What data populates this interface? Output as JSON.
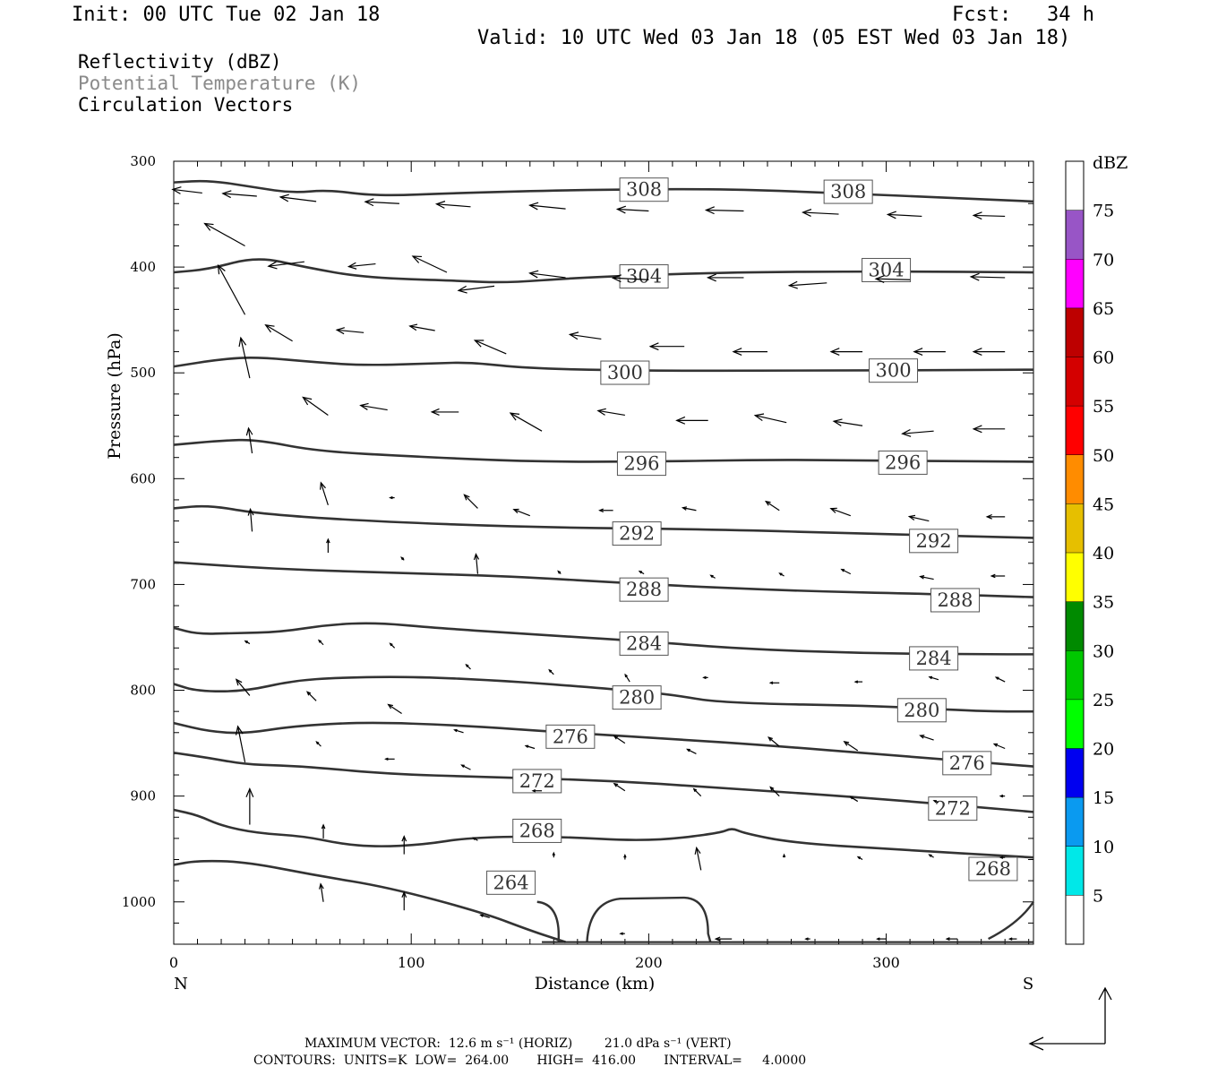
{
  "header": {
    "init": "Init: 00 UTC Tue 02 Jan 18",
    "fcst": "Fcst:   34 h",
    "valid": "Valid: 10 UTC Wed 03 Jan 18 (05 EST Wed 03 Jan 18)"
  },
  "legend": {
    "line1": "Reflectivity (dBZ)",
    "line2": "Potential Temperature (K)",
    "line3": "Circulation Vectors"
  },
  "footer": {
    "max_vector": "MAXIMUM VECTOR:  12.6 m s⁻¹ (HORIZ)        21.0 dPa s⁻¹ (VERT)",
    "contours": "CONTOURS:  UNITS=K  LOW=  264.00       HIGH=  416.00       INTERVAL=     4.0000"
  },
  "chart_data": {
    "type": "cross-section",
    "xlabel": "Distance (km)",
    "ylabel": "Pressure (hPa)",
    "xlim": [
      0,
      362
    ],
    "ylim": [
      1040,
      300
    ],
    "x_ticks": [
      0,
      100,
      200,
      300
    ],
    "y_ticks": [
      300,
      400,
      500,
      600,
      700,
      800,
      900,
      1000
    ],
    "x_end_labels": {
      "left": "N",
      "right": "S"
    },
    "colorbar": {
      "title": "dBZ",
      "levels": [
        5,
        10,
        15,
        20,
        25,
        30,
        35,
        40,
        45,
        50,
        55,
        60,
        65,
        70,
        75
      ],
      "colors": [
        "#ffffff",
        "#00e8e8",
        "#0a9af0",
        "#0000f0",
        "#00ff00",
        "#00c800",
        "#008a00",
        "#ffff00",
        "#e6bf00",
        "#ff8c00",
        "#ff0000",
        "#d40000",
        "#bd0000",
        "#ff00ff",
        "#9855c6",
        "#ffffff"
      ]
    },
    "theta_contours": [
      {
        "value": 308,
        "labels_at": [
          [
            198,
            326
          ],
          [
            284,
            328
          ]
        ],
        "points": [
          [
            0,
            320
          ],
          [
            15,
            318
          ],
          [
            35,
            325
          ],
          [
            50,
            330
          ],
          [
            65,
            327
          ],
          [
            85,
            333
          ],
          [
            120,
            330
          ],
          [
            170,
            327
          ],
          [
            230,
            326
          ],
          [
            280,
            330
          ],
          [
            330,
            335
          ],
          [
            362,
            338
          ]
        ]
      },
      {
        "value": 304,
        "labels_at": [
          [
            198,
            408
          ],
          [
            300,
            402
          ]
        ],
        "points": [
          [
            0,
            405
          ],
          [
            15,
            402
          ],
          [
            35,
            390
          ],
          [
            55,
            400
          ],
          [
            80,
            410
          ],
          [
            120,
            413
          ],
          [
            140,
            415
          ],
          [
            170,
            410
          ],
          [
            230,
            405
          ],
          [
            300,
            404
          ],
          [
            362,
            405
          ]
        ]
      },
      {
        "value": 300,
        "labels_at": [
          [
            190,
            499
          ],
          [
            303,
            497
          ]
        ],
        "points": [
          [
            0,
            494
          ],
          [
            20,
            487
          ],
          [
            35,
            485
          ],
          [
            60,
            490
          ],
          [
            80,
            493
          ],
          [
            110,
            491
          ],
          [
            125,
            490
          ],
          [
            150,
            496
          ],
          [
            200,
            498
          ],
          [
            260,
            498
          ],
          [
            362,
            497
          ]
        ]
      },
      {
        "value": 296,
        "labels_at": [
          [
            197,
            585
          ],
          [
            307,
            584
          ]
        ],
        "points": [
          [
            0,
            568
          ],
          [
            20,
            564
          ],
          [
            35,
            563
          ],
          [
            60,
            574
          ],
          [
            100,
            579
          ],
          [
            150,
            584
          ],
          [
            200,
            584
          ],
          [
            250,
            582
          ],
          [
            300,
            583
          ],
          [
            362,
            584
          ]
        ]
      },
      {
        "value": 292,
        "labels_at": [
          [
            195,
            651
          ],
          [
            320,
            658
          ]
        ],
        "points": [
          [
            0,
            628
          ],
          [
            15,
            625
          ],
          [
            35,
            633
          ],
          [
            80,
            640
          ],
          [
            150,
            646
          ],
          [
            230,
            648
          ],
          [
            290,
            652
          ],
          [
            362,
            656
          ]
        ]
      },
      {
        "value": 288,
        "labels_at": [
          [
            198,
            704
          ],
          [
            329,
            714
          ]
        ],
        "points": [
          [
            0,
            679
          ],
          [
            40,
            685
          ],
          [
            90,
            689
          ],
          [
            140,
            692
          ],
          [
            200,
            700
          ],
          [
            260,
            706
          ],
          [
            320,
            709
          ],
          [
            362,
            712
          ]
        ]
      },
      {
        "value": 284,
        "labels_at": [
          [
            198,
            755
          ],
          [
            320,
            769
          ]
        ],
        "points": [
          [
            0,
            741
          ],
          [
            10,
            747
          ],
          [
            25,
            746
          ],
          [
            45,
            745
          ],
          [
            65,
            738
          ],
          [
            85,
            736
          ],
          [
            110,
            741
          ],
          [
            150,
            747
          ],
          [
            200,
            754
          ],
          [
            240,
            761
          ],
          [
            290,
            765
          ],
          [
            340,
            766
          ],
          [
            362,
            766
          ]
        ]
      },
      {
        "value": 280,
        "labels_at": [
          [
            195,
            806
          ],
          [
            315,
            818
          ]
        ],
        "points": [
          [
            0,
            794
          ],
          [
            10,
            801
          ],
          [
            30,
            801
          ],
          [
            50,
            791
          ],
          [
            70,
            788
          ],
          [
            100,
            787
          ],
          [
            140,
            791
          ],
          [
            180,
            798
          ],
          [
            210,
            804
          ],
          [
            230,
            812
          ],
          [
            300,
            815
          ],
          [
            340,
            820
          ],
          [
            362,
            820
          ]
        ]
      },
      {
        "value": 276,
        "labels_at": [
          [
            167,
            843
          ],
          [
            334,
            868
          ]
        ],
        "points": [
          [
            0,
            831
          ],
          [
            15,
            839
          ],
          [
            30,
            841
          ],
          [
            50,
            834
          ],
          [
            80,
            830
          ],
          [
            120,
            833
          ],
          [
            165,
            840
          ],
          [
            210,
            846
          ],
          [
            250,
            852
          ],
          [
            300,
            861
          ],
          [
            362,
            872
          ]
        ]
      },
      {
        "value": 272,
        "labels_at": [
          [
            153,
            885
          ],
          [
            328,
            911
          ]
        ],
        "points": [
          [
            0,
            859
          ],
          [
            15,
            864
          ],
          [
            30,
            870
          ],
          [
            45,
            871
          ],
          [
            60,
            873
          ],
          [
            90,
            879
          ],
          [
            130,
            882
          ],
          [
            180,
            885
          ],
          [
            230,
            892
          ],
          [
            300,
            903
          ],
          [
            362,
            915
          ]
        ]
      },
      {
        "value": 268,
        "labels_at": [
          [
            153,
            932
          ],
          [
            345,
            968
          ]
        ],
        "points": [
          [
            0,
            913
          ],
          [
            10,
            918
          ],
          [
            20,
            928
          ],
          [
            35,
            935
          ],
          [
            55,
            938
          ],
          [
            70,
            945
          ],
          [
            85,
            948
          ],
          [
            105,
            946
          ],
          [
            125,
            939
          ],
          [
            160,
            938
          ],
          [
            200,
            943
          ],
          [
            230,
            935
          ],
          [
            235,
            930
          ],
          [
            240,
            935
          ],
          [
            260,
            944
          ],
          [
            300,
            950
          ],
          [
            362,
            958
          ]
        ]
      },
      {
        "value": 264,
        "labels_at": [
          [
            142,
            981
          ]
        ],
        "points": [
          [
            0,
            965
          ],
          [
            10,
            961
          ],
          [
            30,
            962
          ],
          [
            60,
            975
          ],
          [
            90,
            986
          ],
          [
            130,
            1010
          ],
          [
            150,
            1027
          ],
          [
            165,
            1038
          ]
        ]
      }
    ],
    "vectors": []
  }
}
